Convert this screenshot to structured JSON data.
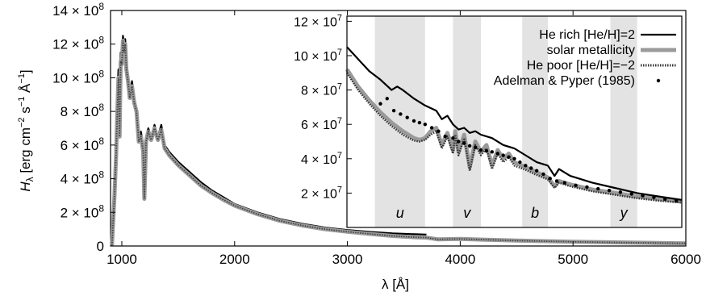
{
  "chart_data": [
    {
      "id": "main",
      "type": "line",
      "xlabel": "λ [Å]",
      "ylabel": {
        "main": "H",
        "sub": "λ",
        "units": " [erg cm",
        "e1": "−2",
        "u2": " s",
        "e2": "−1",
        "u3": " Å",
        "e3": "−1",
        "close": "]"
      },
      "xlim": [
        900,
        6000
      ],
      "ylim": [
        0,
        1400000000
      ],
      "xticks": [
        {
          "value": 1000,
          "label": "1000"
        },
        {
          "value": 2000,
          "label": "2000"
        },
        {
          "value": 3000,
          "label": "3000"
        },
        {
          "value": 4000,
          "label": "4000"
        },
        {
          "value": 5000,
          "label": "5000"
        },
        {
          "value": 6000,
          "label": "6000"
        }
      ],
      "yticks": [
        {
          "value": 0,
          "label": "0",
          "exp": ""
        },
        {
          "value": 200000000,
          "label": "2 × 10",
          "exp": "8"
        },
        {
          "value": 400000000,
          "label": "4 × 10",
          "exp": "8"
        },
        {
          "value": 600000000,
          "label": "6 × 10",
          "exp": "8"
        },
        {
          "value": 800000000,
          "label": "8 × 10",
          "exp": "8"
        },
        {
          "value": 1000000000,
          "label": "10 × 10",
          "exp": "8"
        },
        {
          "value": 1200000000,
          "label": "12 × 10",
          "exp": "8"
        },
        {
          "value": 1400000000,
          "label": "14 × 10",
          "exp": "8"
        }
      ],
      "series": [
        {
          "name": "He rich [He/H]=2",
          "x": [
            912,
            935,
            950,
            960,
            970,
            980,
            990,
            1000,
            1010,
            1020,
            1030,
            1040,
            1055,
            1070,
            1090,
            1110,
            1130,
            1150,
            1170,
            1190,
            1200,
            1215,
            1235,
            1260,
            1290,
            1320,
            1350,
            1380,
            1420,
            1460,
            1500,
            1600,
            1700,
            1800,
            1900,
            2000,
            2200,
            2400,
            2600,
            2800,
            3000,
            3200,
            3400,
            3600,
            3700
          ],
          "y": [
            5000000,
            350000000,
            700000000,
            900000000,
            1050000000,
            700000000,
            1150000000,
            1120000000,
            1250000000,
            1180000000,
            1230000000,
            1100000000,
            1000000000,
            900000000,
            980000000,
            880000000,
            820000000,
            650000000,
            680000000,
            600000000,
            300000000,
            650000000,
            700000000,
            650000000,
            720000000,
            650000000,
            720000000,
            600000000,
            560000000,
            530000000,
            500000000,
            440000000,
            380000000,
            330000000,
            290000000,
            250000000,
            200000000,
            160000000,
            132000000,
            110000000,
            95000000,
            84000000,
            75000000,
            70000000,
            68000000
          ]
        },
        {
          "name": "solar metallicity",
          "x": [
            912,
            935,
            950,
            960,
            970,
            980,
            990,
            1000,
            1010,
            1020,
            1030,
            1040,
            1055,
            1070,
            1090,
            1110,
            1130,
            1150,
            1170,
            1190,
            1200,
            1215,
            1235,
            1260,
            1290,
            1320,
            1350,
            1380,
            1420,
            1460,
            1500,
            1600,
            1700,
            1800,
            1900,
            2000,
            2200,
            2400,
            2600,
            2800,
            3000,
            3200,
            3400,
            3600,
            3700,
            3800,
            4000,
            4200,
            4500,
            5000,
            5500,
            6000
          ],
          "y": [
            3000000,
            300000000,
            550000000,
            800000000,
            1000000000,
            650000000,
            1100000000,
            1080000000,
            1220000000,
            1150000000,
            1200000000,
            1050000000,
            980000000,
            880000000,
            950000000,
            850000000,
            800000000,
            620000000,
            650000000,
            560000000,
            280000000,
            620000000,
            680000000,
            630000000,
            700000000,
            630000000,
            690000000,
            580000000,
            540000000,
            510000000,
            480000000,
            420000000,
            360000000,
            315000000,
            275000000,
            240000000,
            190000000,
            150000000,
            122000000,
            100000000,
            85000000,
            72000000,
            60000000,
            52000000,
            50000000,
            40000000,
            42000000,
            38000000,
            32000000,
            25000000,
            20000000,
            16000000
          ]
        }
      ]
    },
    {
      "id": "inset",
      "type": "line",
      "xlim": [
        3000,
        6000
      ],
      "ylim": [
        0,
        120000000
      ],
      "yticks": [
        {
          "value": 20000000,
          "label": "2 × 10",
          "exp": "7"
        },
        {
          "value": 40000000,
          "label": "4 × 10",
          "exp": "7"
        },
        {
          "value": 60000000,
          "label": "6 × 10",
          "exp": "7"
        },
        {
          "value": 80000000,
          "label": "8 × 10",
          "exp": "7"
        },
        {
          "value": 100000000,
          "label": "10 × 10",
          "exp": "7"
        },
        {
          "value": 120000000,
          "label": "12 × 10",
          "exp": "7"
        }
      ],
      "bands": [
        {
          "label": "u",
          "x0": 3250,
          "x1": 3700
        },
        {
          "label": "v",
          "x0": 3950,
          "x1": 4200
        },
        {
          "label": "b",
          "x0": 4570,
          "x1": 4800
        },
        {
          "label": "y",
          "x0": 5360,
          "x1": 5600
        }
      ],
      "series": [
        {
          "name": "He rich [He/H]=2",
          "style": "solid-black",
          "x": [
            3000,
            3100,
            3200,
            3300,
            3400,
            3450,
            3500,
            3600,
            3700,
            3800,
            3850,
            3900,
            3950,
            4000,
            4050,
            4100,
            4150,
            4200,
            4300,
            4400,
            4500,
            4600,
            4700,
            4800,
            4860,
            4900,
            5000,
            5200,
            5400,
            5600,
            5800,
            6000
          ],
          "y": [
            105000000,
            98000000,
            91000000,
            86000000,
            80000000,
            82000000,
            80000000,
            75000000,
            71000000,
            68000000,
            63000000,
            65000000,
            60000000,
            57000000,
            58000000,
            55000000,
            56000000,
            54000000,
            52000000,
            48000000,
            46000000,
            42000000,
            38000000,
            36000000,
            30000000,
            34000000,
            30000000,
            26000000,
            23000000,
            20000000,
            18000000,
            16000000
          ]
        },
        {
          "name": "solar metallicity",
          "style": "thick-gray",
          "x": [
            3000,
            3100,
            3200,
            3300,
            3400,
            3500,
            3600,
            3650,
            3700,
            3750,
            3800,
            3850,
            3900,
            3950,
            3970,
            4000,
            4050,
            4100,
            4150,
            4200,
            4250,
            4300,
            4350,
            4400,
            4450,
            4500,
            4600,
            4700,
            4800,
            4860,
            4900,
            5000,
            5200,
            5400,
            5600,
            5800,
            6000
          ],
          "y": [
            92000000,
            82000000,
            74000000,
            67000000,
            61000000,
            56000000,
            52000000,
            51000000,
            52000000,
            56000000,
            58000000,
            48000000,
            55000000,
            45000000,
            56000000,
            44000000,
            54000000,
            35000000,
            50000000,
            44000000,
            48000000,
            36000000,
            45000000,
            40000000,
            43000000,
            38000000,
            35000000,
            32000000,
            29000000,
            24000000,
            27000000,
            25000000,
            22000000,
            20000000,
            18000000,
            16500000,
            15000000
          ]
        },
        {
          "name": "He poor [He/H]=−2",
          "style": "dotted",
          "x": [
            3000,
            3100,
            3200,
            3300,
            3400,
            3500,
            3600,
            3650,
            3700,
            3750,
            3800,
            3850,
            3900,
            3950,
            3970,
            4000,
            4050,
            4100,
            4150,
            4200,
            4250,
            4300,
            4350,
            4400,
            4450,
            4500,
            4600,
            4700,
            4800,
            4860,
            4900,
            5000,
            5200,
            5400,
            5600,
            5800,
            6000
          ],
          "y": [
            90000000,
            80000000,
            72000000,
            65000000,
            59000000,
            54000000,
            50500000,
            50000000,
            51000000,
            54000000,
            56000000,
            46000000,
            53000000,
            43000000,
            54000000,
            42000000,
            52000000,
            33000000,
            48000000,
            42000000,
            46000000,
            34000000,
            43000000,
            38000000,
            41000000,
            36000000,
            33500000,
            30500000,
            28000000,
            23000000,
            26000000,
            24000000,
            21000000,
            19000000,
            17000000,
            15500000,
            14500000
          ]
        },
        {
          "name": "Adelman & Pyper (1985)",
          "style": "dots",
          "x": [
            3300,
            3360,
            3420,
            3480,
            3540,
            3600,
            3650,
            3700,
            3760,
            3820,
            3880,
            3950,
            4000,
            4050,
            4100,
            4150,
            4200,
            4250,
            4300,
            4350,
            4400,
            4450,
            4500,
            4550,
            4600,
            4650,
            4700,
            4760,
            4820,
            4880,
            4950,
            5050,
            5150,
            5250,
            5350,
            5450,
            5550,
            5650,
            5750,
            5850,
            5950
          ],
          "y": [
            72000000,
            75000000,
            68000000,
            66000000,
            64000000,
            62000000,
            61000000,
            60000000,
            58000000,
            56000000,
            53000000,
            52000000,
            50000000,
            49000000,
            47500000,
            46500000,
            45000000,
            44500000,
            44000000,
            43000000,
            42000000,
            41000000,
            40000000,
            38000000,
            36000000,
            34500000,
            33000000,
            31000000,
            28500000,
            27000000,
            26000000,
            24500000,
            23500000,
            22500000,
            21500000,
            20500000,
            19500000,
            18500000,
            17500000,
            16500000,
            15500000
          ]
        }
      ],
      "legend": {
        "placement": "top-right"
      }
    }
  ]
}
